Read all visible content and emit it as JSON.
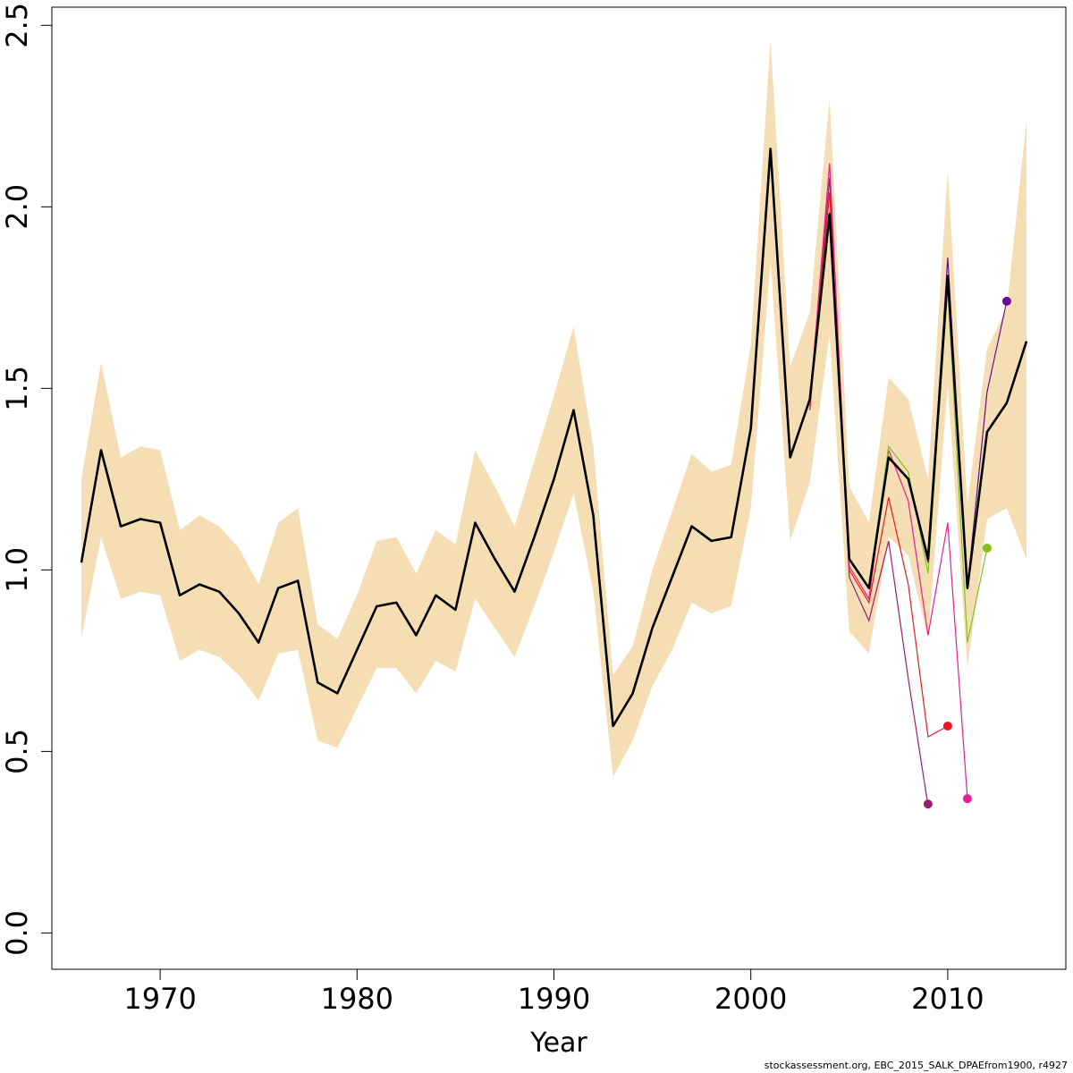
{
  "chart_data": {
    "type": "line",
    "title": "",
    "xlabel": "Year",
    "ylabel": "",
    "xlim": [
      1964.5,
      2016.0
    ],
    "ylim": [
      -0.1,
      2.55
    ],
    "xticks": [
      1970,
      1980,
      1990,
      2000,
      2010
    ],
    "xtick_labels": [
      "1970",
      "1980",
      "1990",
      "2000",
      "2010"
    ],
    "yticks": [
      0.0,
      0.5,
      1.0,
      1.5,
      2.0,
      2.5
    ],
    "ytick_labels": [
      "0.0",
      "0.5",
      "1.0",
      "1.5",
      "2.0",
      "2.5"
    ],
    "grid": false,
    "band_color": "#F5DEB3",
    "main_color": "#000000",
    "band": {
      "x": [
        1966,
        1967,
        1968,
        1969,
        1970,
        1971,
        1972,
        1973,
        1974,
        1975,
        1976,
        1977,
        1978,
        1979,
        1980,
        1981,
        1982,
        1983,
        1984,
        1985,
        1986,
        1987,
        1988,
        1989,
        1990,
        1991,
        1992,
        1993,
        1994,
        1995,
        1996,
        1997,
        1998,
        1999,
        2000,
        2001,
        2002,
        2003,
        2004,
        2005,
        2006,
        2007,
        2008,
        2009,
        2010,
        2011,
        2012,
        2013,
        2014
      ],
      "upper": [
        1.25,
        1.57,
        1.31,
        1.34,
        1.33,
        1.11,
        1.15,
        1.12,
        1.06,
        0.96,
        1.13,
        1.17,
        0.85,
        0.81,
        0.93,
        1.08,
        1.09,
        0.99,
        1.11,
        1.07,
        1.33,
        1.23,
        1.12,
        1.3,
        1.48,
        1.67,
        1.34,
        0.71,
        0.79,
        1.0,
        1.16,
        1.32,
        1.27,
        1.29,
        1.62,
        2.46,
        1.56,
        1.71,
        2.3,
        1.23,
        1.13,
        1.53,
        1.47,
        1.25,
        2.1,
        1.18,
        1.61,
        1.72,
        2.24
      ],
      "lower": [
        0.81,
        1.09,
        0.92,
        0.94,
        0.93,
        0.75,
        0.78,
        0.76,
        0.71,
        0.64,
        0.77,
        0.78,
        0.53,
        0.51,
        0.62,
        0.73,
        0.73,
        0.66,
        0.75,
        0.72,
        0.92,
        0.84,
        0.76,
        0.9,
        1.05,
        1.21,
        0.94,
        0.43,
        0.53,
        0.68,
        0.78,
        0.91,
        0.88,
        0.9,
        1.17,
        1.85,
        1.08,
        1.24,
        1.65,
        0.83,
        0.77,
        1.09,
        1.04,
        0.81,
        1.51,
        0.73,
        1.14,
        1.17,
        1.03
      ]
    },
    "main": {
      "x": [
        1966,
        1967,
        1968,
        1969,
        1970,
        1971,
        1972,
        1973,
        1974,
        1975,
        1976,
        1977,
        1978,
        1979,
        1980,
        1981,
        1982,
        1983,
        1984,
        1985,
        1986,
        1987,
        1988,
        1989,
        1990,
        1991,
        1992,
        1993,
        1994,
        1995,
        1996,
        1997,
        1998,
        1999,
        2000,
        2001,
        2002,
        2003,
        2004,
        2005,
        2006,
        2007,
        2008,
        2009,
        2010,
        2011,
        2012,
        2013,
        2014
      ],
      "y": [
        1.02,
        1.33,
        1.12,
        1.14,
        1.13,
        0.93,
        0.96,
        0.94,
        0.88,
        0.8,
        0.95,
        0.97,
        0.69,
        0.66,
        0.78,
        0.9,
        0.91,
        0.82,
        0.93,
        0.89,
        1.13,
        1.03,
        0.94,
        1.09,
        1.25,
        1.44,
        1.15,
        0.57,
        0.66,
        0.84,
        0.98,
        1.12,
        1.08,
        1.09,
        1.39,
        2.16,
        1.31,
        1.47,
        1.98,
        1.03,
        0.95,
        1.31,
        1.25,
        1.03,
        1.81,
        0.95,
        1.38,
        1.46,
        1.63
      ]
    },
    "retrospective_series": [
      {
        "color": "#9B1E6E",
        "x": [
          2003,
          2004,
          2005,
          2006,
          2007,
          2008,
          2009
        ],
        "y": [
          1.44,
          2.08,
          0.98,
          0.86,
          1.08,
          0.7,
          0.35
        ],
        "end_point": {
          "x": 2009,
          "y": 0.355
        }
      },
      {
        "color": "#E8191F",
        "x": [
          2003,
          2004,
          2005,
          2006,
          2007,
          2008,
          2009,
          2010
        ],
        "y": [
          1.45,
          2.04,
          1.0,
          0.91,
          1.2,
          0.96,
          0.54,
          0.57
        ],
        "end_point": {
          "x": 2010,
          "y": 0.57
        }
      },
      {
        "color": "#E61E96",
        "x": [
          2003,
          2004,
          2005,
          2006,
          2007,
          2008,
          2009,
          2010,
          2011
        ],
        "y": [
          1.46,
          2.12,
          1.01,
          0.92,
          1.33,
          1.19,
          0.82,
          1.13,
          0.37
        ],
        "end_point": {
          "x": 2011,
          "y": 0.37
        }
      },
      {
        "color": "#7FC31C",
        "x": [
          2003,
          2004,
          2005,
          2006,
          2007,
          2008,
          2009,
          2010,
          2011,
          2012
        ],
        "y": [
          1.47,
          1.99,
          1.03,
          0.95,
          1.34,
          1.27,
          0.99,
          1.78,
          0.8,
          1.06
        ],
        "end_point": {
          "x": 2012,
          "y": 1.06
        }
      },
      {
        "color": "#6A0D91",
        "x": [
          2003,
          2004,
          2005,
          2006,
          2007,
          2008,
          2009,
          2010,
          2011,
          2012,
          2013
        ],
        "y": [
          1.47,
          1.98,
          1.03,
          0.95,
          1.31,
          1.25,
          1.02,
          1.86,
          0.95,
          1.49,
          1.74
        ],
        "end_point": {
          "x": 2013,
          "y": 1.74
        }
      }
    ]
  },
  "footer": {
    "note": "stockassessment.org, EBC_2015_SALK_DPAEfrom1900, r4927"
  }
}
